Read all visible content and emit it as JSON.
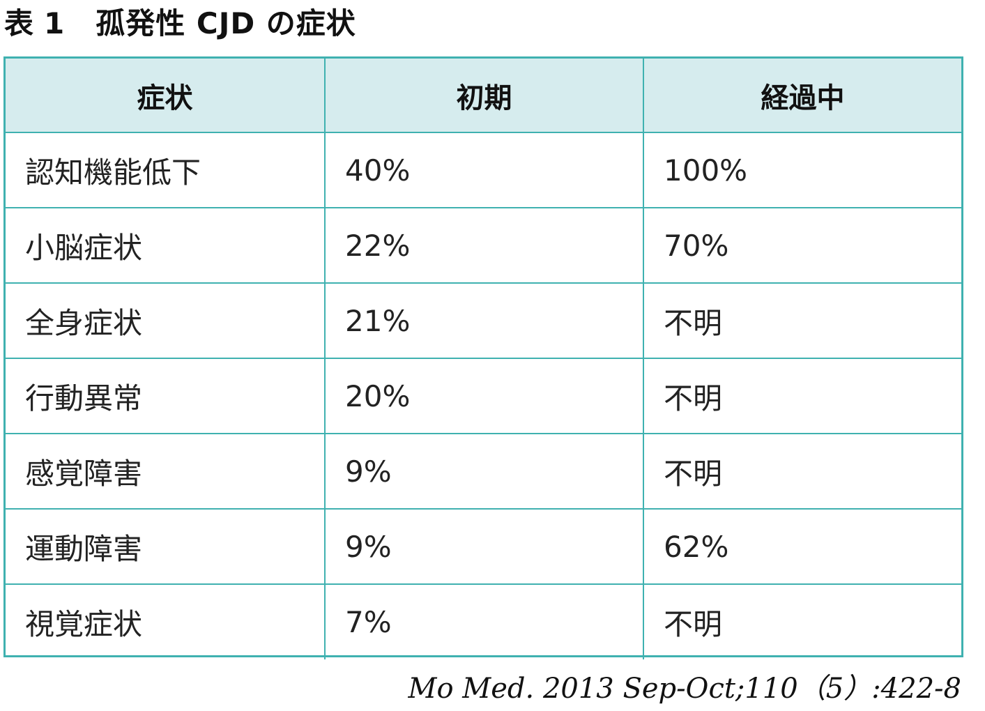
{
  "title": {
    "label": "表",
    "number": "1",
    "text": "孤発性 CJD の症状"
  },
  "table": {
    "headers": [
      "症状",
      "初期",
      "経過中"
    ],
    "rows": [
      {
        "symptom": "認知機能低下",
        "initial": "40%",
        "during": "100%"
      },
      {
        "symptom": "小脳症状",
        "initial": "22%",
        "during": "70%"
      },
      {
        "symptom": "全身症状",
        "initial": "21%",
        "during": "不明"
      },
      {
        "symptom": "行動異常",
        "initial": "20%",
        "during": "不明"
      },
      {
        "symptom": "感覚障害",
        "initial": "9%",
        "during": "不明"
      },
      {
        "symptom": "運動障害",
        "initial": "9%",
        "during": "62%"
      },
      {
        "symptom": "視覚症状",
        "initial": "7%",
        "during": "不明"
      }
    ]
  },
  "citation": "Mo Med. 2013 Sep-Oct;110（5）:422-8",
  "colors": {
    "border": "#3fb1b0",
    "header_bg": "#d6ecee",
    "text": "#111111"
  }
}
